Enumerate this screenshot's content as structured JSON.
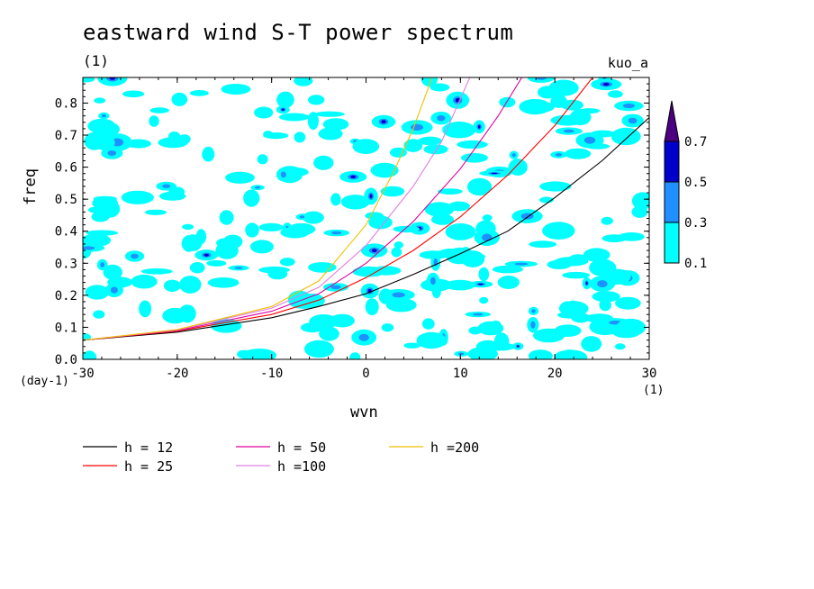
{
  "chart_data": {
    "type": "line",
    "title": "eastward wind S-T power spectrum",
    "subtitle": "(1)",
    "model_label": "kuo_a",
    "xlabel": "wvn",
    "ylabel": "freq",
    "x_unit": "(1)",
    "y_unit": "(day-1)",
    "xlim": [
      -30,
      30
    ],
    "ylim": [
      0,
      0.88
    ],
    "x_ticks": [
      "-30",
      "-20",
      "-10",
      "0",
      "10",
      "20",
      "30"
    ],
    "y_ticks": [
      "0.0",
      "0.1",
      "0.2",
      "0.3",
      "0.4",
      "0.5",
      "0.6",
      "0.7",
      "0.8"
    ],
    "contour_levels": [
      0.1,
      0.3,
      0.5,
      0.7
    ],
    "colorbar_labels": [
      "0.1",
      "0.3",
      "0.5",
      "0.7"
    ],
    "colorbar_colors": [
      "#00ffff",
      "#1e90ff",
      "#0000cd",
      "#4b0082"
    ],
    "series": [
      {
        "name": "h = 12",
        "color": "#000000",
        "x": [
          -30,
          -20,
          -10,
          -5,
          0,
          5,
          10,
          15,
          20,
          25,
          30
        ],
        "y": [
          0.06,
          0.085,
          0.13,
          0.165,
          0.205,
          0.265,
          0.33,
          0.4,
          0.505,
          0.62,
          0.755
        ]
      },
      {
        "name": "h = 25",
        "color": "#ff0000",
        "x": [
          -30,
          -20,
          -10,
          -5,
          0,
          5,
          10,
          15,
          20,
          24
        ],
        "y": [
          0.06,
          0.088,
          0.14,
          0.185,
          0.255,
          0.34,
          0.445,
          0.575,
          0.73,
          0.88
        ]
      },
      {
        "name": "h = 50",
        "color": "#e000a0",
        "x": [
          -30,
          -20,
          -10,
          -5,
          0,
          5,
          10,
          14,
          16.5
        ],
        "y": [
          0.06,
          0.09,
          0.15,
          0.205,
          0.3,
          0.43,
          0.595,
          0.76,
          0.88
        ]
      },
      {
        "name": "h =100",
        "color": "#e080e0",
        "x": [
          -30,
          -20,
          -10,
          -5,
          0,
          5,
          8,
          11
        ],
        "y": [
          0.06,
          0.092,
          0.16,
          0.225,
          0.355,
          0.54,
          0.68,
          0.88
        ]
      },
      {
        "name": "h =200",
        "color": "#f0c000",
        "x": [
          -30,
          -20,
          -10,
          -5,
          0,
          3,
          5,
          7
        ],
        "y": [
          0.06,
          0.093,
          0.165,
          0.245,
          0.42,
          0.59,
          0.72,
          0.88
        ]
      }
    ],
    "legend_placement": "bottom"
  }
}
